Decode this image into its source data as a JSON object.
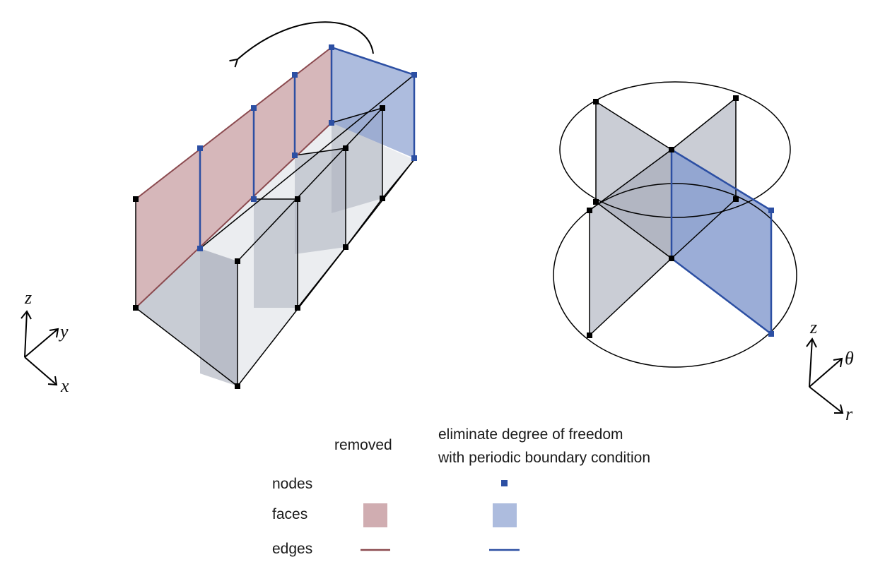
{
  "colors": {
    "removed_face": "#c89fa3",
    "removed_edge": "#8b4a4f",
    "periodic_face": "#8a9fd0",
    "periodic_edge": "#2c4fa3",
    "periodic_node": "#2c4fa3",
    "grey_face": "#9ea4b2",
    "node": "#000000"
  },
  "left_axes": {
    "z": "z",
    "y": "y",
    "x": "x"
  },
  "right_axes": {
    "z": "z",
    "theta": "θ",
    "r": "r"
  },
  "legend": {
    "col_removed": "removed",
    "col_periodic_line1": "eliminate degree of freedom",
    "col_periodic_line2": "with periodic boundary condition",
    "row_nodes": "nodes",
    "row_faces": "faces",
    "row_edges": "edges"
  }
}
